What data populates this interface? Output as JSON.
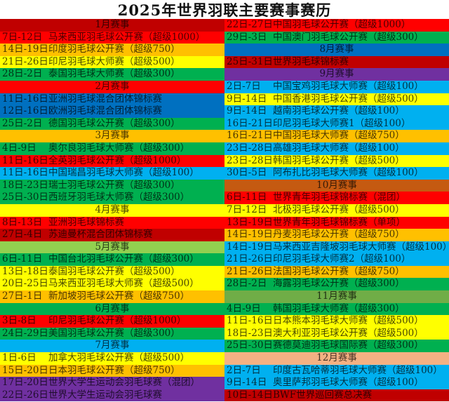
{
  "title": "2025年世界羽联主要赛事赛历",
  "colors": {
    "dark_red": "#c00000",
    "red": "#ff0000",
    "orange": "#ffc000",
    "yellow": "#ffff00",
    "green": "#00b050",
    "blue": "#0070c0",
    "light_blue": "#00b0f0",
    "purple": "#7030a0",
    "light_green": "#92d050",
    "brown": "#c55a11",
    "olive": "#70ad47",
    "peach": "#f4b183"
  },
  "left_rows": [
    {
      "type": "header",
      "label": "1月赛事",
      "color": "#c00000"
    },
    {
      "type": "event",
      "date": "7日-12日",
      "name": "马来西亚羽毛球公开赛（超级1000）",
      "color": "#ff0000"
    },
    {
      "type": "event",
      "date": "14日-19日",
      "name": "印度羽毛球公开赛（超级750）",
      "color": "#ffc000"
    },
    {
      "type": "event",
      "date": "21日-26日",
      "name": "印尼羽毛球大师赛（超级500）",
      "color": "#ffff00"
    },
    {
      "type": "event",
      "date": "28日-2日",
      "name": "泰国羽毛球大师赛（超级300）",
      "color": "#00b050"
    },
    {
      "type": "header",
      "label": "2月赛事",
      "color": "#ff0000"
    },
    {
      "type": "event",
      "date": "11日-16日",
      "name": "亚洲羽毛球混合团体锦标赛",
      "color": "#0070c0"
    },
    {
      "type": "event",
      "date": "12日-16日",
      "name": "欧洲羽毛球混合团体锦标赛",
      "color": "#0070c0"
    },
    {
      "type": "event",
      "date": "25日-2日",
      "name": "德国羽毛球公开赛（超级300）",
      "color": "#00b050"
    },
    {
      "type": "header",
      "label": "3月赛事",
      "color": "#ffc000"
    },
    {
      "type": "event",
      "date": "4日-9日",
      "name": "奥尔良羽毛球大师赛（超级300）",
      "color": "#00b050"
    },
    {
      "type": "event",
      "date": "11日-16日",
      "name": "全英羽毛球公开赛（超级1000）",
      "color": "#ff0000"
    },
    {
      "type": "event",
      "date": "11日-16日",
      "name": "中国瑞昌羽毛球大师赛（超级100）",
      "color": "#00b0f0"
    },
    {
      "type": "event",
      "date": "18日-23日",
      "name": "瑞士羽毛球公开赛（超级300）",
      "color": "#00b050"
    },
    {
      "type": "event",
      "date": "25日-30日",
      "name": "西班牙羽毛球大师赛（超级300）",
      "color": "#00b050"
    },
    {
      "type": "header",
      "label": "4月赛事",
      "color": "#ffff00"
    },
    {
      "type": "event",
      "date": "8日-13日",
      "name": "亚洲羽毛球锦标赛",
      "color": "#ff0000"
    },
    {
      "type": "event",
      "date": "27日-4日",
      "name": "苏迪曼杯混合团体锦标赛",
      "color": "#c00000"
    },
    {
      "type": "header",
      "label": "5月赛事",
      "color": "#92d050"
    },
    {
      "type": "event",
      "date": "6日-11日",
      "name": "中国台北羽毛球公开赛（超级300）",
      "color": "#00b050"
    },
    {
      "type": "event",
      "date": "13日-18日",
      "name": "泰国羽毛球公开赛（超级500）",
      "color": "#ffff00"
    },
    {
      "type": "event",
      "date": "20日-25日",
      "name": "马来西亚羽毛球大师赛（超级500）",
      "color": "#ffff00"
    },
    {
      "type": "event",
      "date": "27日-1日",
      "name": "新加坡羽毛球公开赛（超级750）",
      "color": "#ffc000"
    },
    {
      "type": "header",
      "label": "6月赛事",
      "color": "#00b050"
    },
    {
      "type": "event",
      "date": "3日-8日",
      "name": "印尼羽毛球公开赛（超级1000）",
      "color": "#ff0000"
    },
    {
      "type": "event",
      "date": "24日-29日",
      "name": "美国羽毛球公开赛（超级300）",
      "color": "#00b050"
    },
    {
      "type": "header",
      "label": "7月赛事",
      "color": "#00b0f0"
    },
    {
      "type": "event",
      "date": "1日-6日",
      "name": "加拿大羽毛球公开赛（超级500）",
      "color": "#ffff00"
    },
    {
      "type": "event",
      "date": "15日-20日",
      "name": "日本羽毛球公开赛（超级750）",
      "color": "#ffc000"
    },
    {
      "type": "event",
      "date": "17日-20日",
      "name": "世界大学生运动会羽毛球赛（混团）",
      "color": "#7030a0"
    },
    {
      "type": "event",
      "date": "22日-26日",
      "name": "世界大学生运动会羽毛球赛",
      "color": "#7030a0"
    }
  ],
  "right_rows": [
    {
      "type": "event",
      "date": "22日-27日",
      "name": "中国羽毛球公开赛（超级1000）",
      "color": "#ff0000"
    },
    {
      "type": "event",
      "date": "29日-3日",
      "name": "中国澳门羽毛球公开赛（超级300）",
      "color": "#00b050"
    },
    {
      "type": "header",
      "label": "8月赛事",
      "color": "#0070c0"
    },
    {
      "type": "event",
      "date": "25日-31日",
      "name": "世界羽毛球锦标赛",
      "color": "#c00000"
    },
    {
      "type": "header",
      "label": "9月赛事",
      "color": "#7030a0"
    },
    {
      "type": "event",
      "date": "2日-7日",
      "name": "中国宝鸡羽毛球大师赛（超级100）",
      "color": "#00b0f0"
    },
    {
      "type": "event",
      "date": "9日-14日",
      "name": "中国香港羽毛球公开赛（超级500）",
      "color": "#ffff00"
    },
    {
      "type": "event",
      "date": "9日-14日",
      "name": "越南羽毛球公开赛（超级100）",
      "color": "#00b0f0"
    },
    {
      "type": "event",
      "date": "16日-21日",
      "name": "印尼羽毛球大师赛1（超级100）",
      "color": "#00b0f0"
    },
    {
      "type": "event",
      "date": "16日-21日",
      "name": "中国羽毛球大师赛（超级750）",
      "color": "#ffc000"
    },
    {
      "type": "event",
      "date": "23日-28日",
      "name": "高雄羽毛球大师赛（超级100）",
      "color": "#00b0f0"
    },
    {
      "type": "event",
      "date": "23日-28日",
      "name": "韩国羽毛球公开赛（超级500）",
      "color": "#ffff00"
    },
    {
      "type": "event",
      "date": "30日-5日",
      "name": "阿布扎比羽毛球大师赛（超级100）",
      "color": "#00b0f0"
    },
    {
      "type": "header",
      "label": "10月赛事",
      "color": "#c55a11"
    },
    {
      "type": "event",
      "date": "6日-11日",
      "name": "世界青年羽毛球锦标赛（混团）",
      "color": "#ff0000"
    },
    {
      "type": "event",
      "date": "7日-12日",
      "name": "北极羽毛球公开赛（超级500）",
      "color": "#ffff00"
    },
    {
      "type": "event",
      "date": "13日-19日",
      "name": "世界青年羽毛球锦标赛（单项）",
      "color": "#ff0000"
    },
    {
      "type": "event",
      "date": "14日-19日",
      "name": "丹麦羽毛球公开赛（超级750）",
      "color": "#ffc000"
    },
    {
      "type": "event",
      "date": "14日-19日",
      "name": "马来西亚吉隆坡羽毛球大师赛（超级100）",
      "color": "#00b0f0"
    },
    {
      "type": "event",
      "date": "21日-26日",
      "name": "印尼羽毛球大师赛2（超级100）",
      "color": "#00b0f0"
    },
    {
      "type": "event",
      "date": "21日-26日",
      "name": "法国羽毛球公开赛（超级750）",
      "color": "#ffc000"
    },
    {
      "type": "event",
      "date": "28日-2日",
      "name": "海露羽毛球公开赛（超级300）",
      "color": "#00b050"
    },
    {
      "type": "header",
      "label": "11月赛事",
      "color": "#70ad47"
    },
    {
      "type": "event",
      "date": "4日-9日",
      "name": "韩国羽毛球大师赛（超级300）",
      "color": "#00b050"
    },
    {
      "type": "event",
      "date": "11日-16日",
      "name": "日本熊本羽毛球大师赛（超级500）",
      "color": "#ffff00"
    },
    {
      "type": "event",
      "date": "18日-23日",
      "name": "澳大利亚羽毛球公开赛（超级500）",
      "color": "#ffff00"
    },
    {
      "type": "event",
      "date": "25日-30日",
      "name": "赛德莫迪羽毛球国际赛（超级300）",
      "color": "#00b050"
    },
    {
      "type": "header",
      "label": "12月赛事",
      "color": "#f4b183"
    },
    {
      "type": "event",
      "date": "2日-7日",
      "name": "印度古瓦哈蒂羽毛球大师赛（超级100）",
      "color": "#00b0f0"
    },
    {
      "type": "event",
      "date": "9日-14日",
      "name": "奥里萨邦羽毛球大师赛（超级100）",
      "color": "#00b0f0"
    },
    {
      "type": "event",
      "date": "10日-14日",
      "name": "BWF世界巡回赛总决赛",
      "color": "#c00000"
    }
  ]
}
